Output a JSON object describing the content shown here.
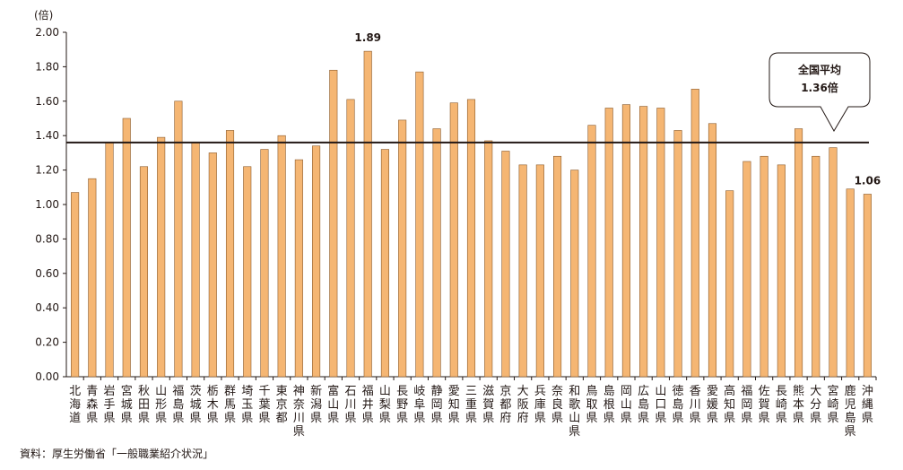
{
  "chart_data": {
    "type": "bar",
    "unit_label": "(倍)",
    "ylim": [
      0,
      2.0
    ],
    "yticks": [
      "0.00",
      "0.20",
      "0.40",
      "0.60",
      "0.80",
      "1.00",
      "1.20",
      "1.40",
      "1.60",
      "1.80",
      "2.00"
    ],
    "categories": [
      "北海道",
      "青森県",
      "岩手県",
      "宮城県",
      "秋田県",
      "山形県",
      "福島県",
      "茨城県",
      "栃木県",
      "群馬県",
      "埼玉県",
      "千葉県",
      "東京都",
      "神奈川県",
      "新潟県",
      "富山県",
      "石川県",
      "福井県",
      "山梨県",
      "長野県",
      "岐阜県",
      "静岡県",
      "愛知県",
      "三重県",
      "滋賀県",
      "京都府",
      "大阪府",
      "兵庫県",
      "奈良県",
      "和歌山県",
      "鳥取県",
      "島根県",
      "岡山県",
      "広島県",
      "山口県",
      "徳島県",
      "香川県",
      "愛媛県",
      "高知県",
      "福岡県",
      "佐賀県",
      "長崎県",
      "熊本県",
      "大分県",
      "宮崎県",
      "鹿児島県",
      "沖縄県"
    ],
    "values": [
      1.07,
      1.15,
      1.36,
      1.5,
      1.22,
      1.39,
      1.6,
      1.36,
      1.3,
      1.43,
      1.22,
      1.32,
      1.4,
      1.26,
      1.34,
      1.78,
      1.61,
      1.89,
      1.32,
      1.49,
      1.77,
      1.44,
      1.59,
      1.61,
      1.37,
      1.31,
      1.23,
      1.23,
      1.28,
      1.2,
      1.46,
      1.56,
      1.58,
      1.57,
      1.56,
      1.43,
      1.67,
      1.47,
      1.08,
      1.25,
      1.28,
      1.23,
      1.44,
      1.28,
      1.33,
      1.09,
      1.06
    ],
    "reference_line": {
      "value": 1.36,
      "label_line1": "全国平均",
      "label_line2": "1.36倍"
    },
    "data_labels": [
      {
        "index": 17,
        "text": "1.89"
      },
      {
        "index": 46,
        "text": "1.06"
      }
    ],
    "bar_color": "#F5B673",
    "bar_border_color": "#8A5A2B",
    "grid": false,
    "legend": "none"
  },
  "source": "資料：厚生労働省「一般職業紹介状況」"
}
